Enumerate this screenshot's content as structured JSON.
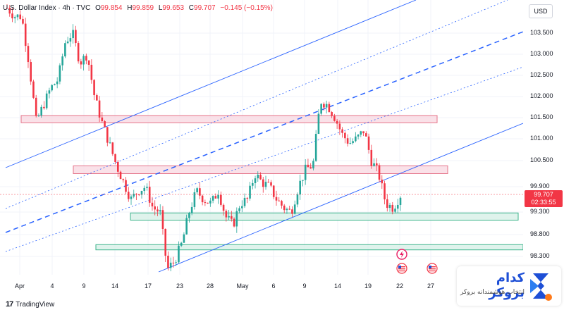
{
  "legend": {
    "symbol": "U.S. Dollar Index · 4h · TVC",
    "open_label": "O",
    "open": "99.854",
    "high_label": "H",
    "high": "99.859",
    "low_label": "L",
    "low": "99.653",
    "close_label": "C",
    "close": "99.707",
    "change": "−0.145 (−0.15%)"
  },
  "price_axis": {
    "currency": "USD",
    "ticks": [
      "103.500",
      "103.000",
      "102.500",
      "102.000",
      "101.500",
      "101.000",
      "100.500",
      "99.900",
      "99.300",
      "98.800",
      "98.300"
    ],
    "current_price": "99.707",
    "countdown": "02:33:55"
  },
  "time_axis": {
    "labels": [
      "Apr",
      "4",
      "9",
      "14",
      "17",
      "23",
      "28",
      "May",
      "6",
      "9",
      "14",
      "19",
      "22",
      "27"
    ]
  },
  "footer": {
    "logo": "17",
    "brand": "TradingView"
  },
  "watermark": {
    "title": "کدام بروکر",
    "subtitle": "انتخاب هوشمندانه بروکر"
  },
  "colors": {
    "up": "#26a69a",
    "down": "#f23645",
    "trend": "#2962ff",
    "resistance_fill": "#f8d7e0",
    "resistance_border": "#e57389",
    "support_fill": "#d4efe6",
    "support_border": "#3bb38a"
  },
  "chart_data": {
    "type": "candlestick",
    "title": "U.S. Dollar Index · 4h · TVC",
    "y_unit": "USD",
    "ylim": [
      98.05,
      104.0
    ],
    "x_ticks": [
      "Apr",
      "4",
      "9",
      "14",
      "17",
      "23",
      "28",
      "May",
      "6",
      "9",
      "14",
      "19",
      "22",
      "27"
    ],
    "close_path": [
      104.1,
      103.9,
      103.9,
      102.8,
      101.4,
      101.8,
      102.2,
      102.4,
      103.3,
      103.5,
      102.8,
      103.0,
      102.0,
      101.4,
      100.9,
      100.4,
      100.0,
      99.6,
      99.8,
      99.9,
      99.4,
      99.3,
      98.0,
      98.2,
      98.6,
      99.3,
      99.8,
      99.6,
      99.5,
      99.8,
      99.2,
      99.0,
      99.5,
      99.6,
      100.2,
      100.0,
      99.9,
      99.6,
      99.4,
      99.3,
      99.9,
      100.3,
      100.4,
      101.9,
      101.8,
      101.5,
      101.1,
      100.9,
      101.0,
      101.2,
      100.5,
      100.2,
      99.5,
      99.4,
      99.7
    ],
    "zones": [
      {
        "type": "resistance",
        "from": 101.38,
        "to": 101.55
      },
      {
        "type": "resistance",
        "from": 100.2,
        "to": 100.38
      },
      {
        "type": "support",
        "from": 99.12,
        "to": 99.28
      },
      {
        "type": "support",
        "from": 98.45,
        "to": 98.57
      }
    ]
  }
}
